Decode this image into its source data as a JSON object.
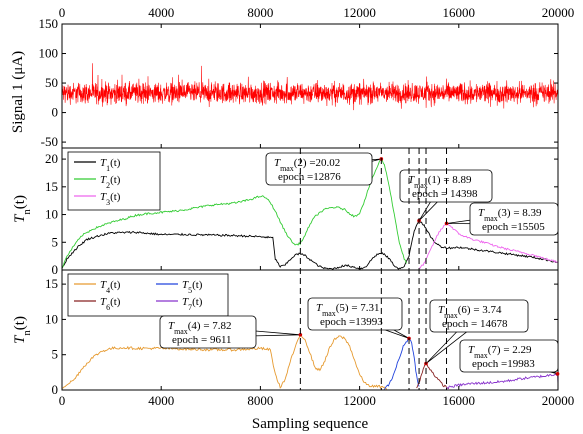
{
  "chart_data": {
    "type": "line",
    "x_axis": {
      "label": "Sampling sequence",
      "range": [
        0,
        20000
      ],
      "ticks": [
        "0",
        "4000",
        "8000",
        "12000",
        "16000",
        "20000"
      ]
    },
    "epoch_markers": [
      9611,
      12876,
      13993,
      14398,
      14678,
      15505
    ],
    "panels": [
      {
        "ylabel_prefix": "Signal 1 (",
        "ylabel_unit": "μA",
        "ylabel_suffix": ")",
        "ylim": [
          -60,
          150
        ],
        "yticks": [
          -50,
          0,
          50,
          100,
          150
        ],
        "series": [
          {
            "name": "",
            "color": "#ff0000",
            "noise": true,
            "mean": 33,
            "amplitude_typical": 26,
            "amplitude_max": 55
          }
        ]
      },
      {
        "ylabel_main": "T",
        "ylabel_sub": "n",
        "ylabel_rest": "(t)",
        "ylim": [
          0,
          22
        ],
        "yticks": [
          0,
          5,
          10,
          15,
          20
        ],
        "legend": [
          {
            "main": "T",
            "sub": "1",
            "rest": "(t)",
            "color": "#000000"
          },
          {
            "main": "T",
            "sub": "2",
            "rest": "(t)",
            "color": "#33cc33"
          },
          {
            "main": "T",
            "sub": "3",
            "rest": "(t)",
            "color": "#ee66ee"
          }
        ],
        "series": [
          {
            "name": "T1(t)",
            "color": "#000000",
            "x": [
              0,
              200,
              600,
              1000,
              1500,
              2000,
              3000,
              4000,
              5000,
              6000,
              7000,
              8000,
              8500,
              8600,
              8800,
              9000,
              9200,
              9400,
              9600,
              9800,
              10000,
              10200,
              10400,
              10600,
              10800,
              11000,
              11300,
              11500,
              11700,
              11900,
              12000,
              12100,
              12300,
              12500,
              12700,
              12876,
              13000,
              13200,
              13400,
              13600,
              13800,
              13993,
              14100,
              14200,
              14300,
              14398,
              14500,
              14600,
              14700,
              14900,
              15100,
              15300,
              15505,
              15700,
              16000,
              17000,
              18000,
              19000,
              20000
            ],
            "values": [
              0.3,
              2.0,
              4.0,
              5.5,
              6.2,
              6.7,
              6.8,
              6.4,
              6.4,
              6.3,
              6.2,
              6.0,
              5.8,
              2.0,
              0.6,
              0.9,
              1.9,
              2.7,
              2.95,
              2.6,
              1.9,
              1.2,
              0.6,
              0.3,
              0.2,
              0.3,
              0.7,
              0.8,
              0.6,
              0.4,
              0.3,
              0.3,
              0.8,
              2.0,
              2.8,
              3.0,
              2.8,
              2.0,
              0.8,
              0.2,
              0.6,
              2.5,
              5.0,
              7.0,
              8.2,
              8.89,
              8.6,
              8.0,
              7.2,
              5.8,
              4.7,
              4.2,
              4.0,
              4.0,
              4.1,
              3.5,
              2.9,
              2.3,
              1.4
            ]
          },
          {
            "name": "T2(t)",
            "color": "#33cc33",
            "x": [
              0,
              200,
              500,
              800,
              1200,
              1600,
              2000,
              2500,
              3000,
              3500,
              4000,
              4500,
              5000,
              5500,
              6000,
              6500,
              7000,
              7500,
              8000,
              8200,
              8400,
              8600,
              8800,
              9000,
              9200,
              9400,
              9600,
              9800,
              10000,
              10200,
              10400,
              10600,
              10800,
              11000,
              11200,
              11400,
              11600,
              11800,
              12000,
              12200,
              12400,
              12600,
              12800,
              12876,
              13000,
              13200,
              13400,
              13600,
              13800,
              13900
            ],
            "values": [
              0.3,
              2.5,
              4.5,
              6.2,
              7.3,
              8.0,
              8.6,
              9.2,
              9.9,
              10.2,
              10.4,
              10.6,
              10.9,
              11.3,
              11.7,
              11.9,
              12.1,
              12.6,
              13.3,
              13.1,
              12.2,
              10.6,
              8.7,
              6.9,
              5.5,
              4.5,
              4.8,
              6.2,
              8.3,
              9.6,
              10.4,
              10.9,
              11.2,
              11.3,
              11.2,
              10.9,
              10.2,
              9.6,
              10.3,
              12.5,
              15.2,
              17.5,
              19.5,
              20.02,
              19.0,
              15.0,
              10.0,
              5.0,
              2.0,
              1.2
            ]
          },
          {
            "name": "T3(t)",
            "color": "#ee66ee",
            "x": [
              14400,
              14600,
              14800,
              15000,
              15200,
              15400,
              15505,
              15700,
              16000,
              16500,
              17000,
              17500,
              18000,
              18500,
              19000,
              19500,
              20000
            ],
            "values": [
              0.2,
              1.2,
              3.0,
              5.0,
              6.8,
              7.9,
              8.39,
              7.8,
              6.5,
              5.6,
              5.0,
              4.3,
              3.7,
              3.2,
              2.7,
              2.0,
              1.4
            ]
          }
        ],
        "annotations": [
          {
            "line1_main": "T",
            "line1_sub": "max",
            "line1_rest": "(2) =20.02",
            "line2": "epoch =12876",
            "epoch": 12876,
            "value": 20.02
          },
          {
            "line1_main": "T",
            "line1_sub": "max",
            "line1_rest": "(1) = 8.89",
            "line2": "epoch = 14398",
            "epoch": 14398,
            "value": 8.89
          },
          {
            "line1_main": "T",
            "line1_sub": "max",
            "line1_rest": "(3) = 8.39",
            "line2": "epoch =15505",
            "epoch": 15505,
            "value": 8.39
          }
        ]
      },
      {
        "ylabel_main": "T",
        "ylabel_sub": "n",
        "ylabel_rest": "(t)",
        "ylim": [
          0,
          17
        ],
        "yticks": [
          0,
          5,
          10,
          15
        ],
        "legend": [
          {
            "main": "T",
            "sub": "4",
            "rest": "(t)",
            "color": "#e69a30"
          },
          {
            "main": "T",
            "sub": "5",
            "rest": "(t)",
            "color": "#2244dd"
          },
          {
            "main": "T",
            "sub": "6",
            "rest": "(t)",
            "color": "#882222"
          },
          {
            "main": "T",
            "sub": "7",
            "rest": "(t)",
            "color": "#8833cc"
          }
        ],
        "series": [
          {
            "name": "T4(t)",
            "color": "#e69a30",
            "x": [
              0,
              200,
              500,
              800,
              1200,
              1600,
              2000,
              2500,
              3000,
              4000,
              5000,
              6000,
              7000,
              8000,
              8400,
              8600,
              8800,
              9000,
              9200,
              9400,
              9611,
              9800,
              10000,
              10200,
              10400,
              10600,
              10800,
              11000,
              11200,
              11400,
              11600,
              11800,
              12000,
              12200,
              12400,
              12600,
              12800,
              13000,
              13100
            ],
            "values": [
              0.3,
              0.8,
              1.5,
              3.0,
              4.5,
              5.5,
              5.9,
              6.0,
              5.9,
              5.9,
              5.8,
              5.7,
              5.7,
              5.9,
              5.7,
              2.2,
              0.4,
              1.5,
              4.0,
              6.0,
              7.82,
              7.2,
              5.2,
              3.2,
              2.8,
              4.2,
              6.0,
              7.2,
              7.6,
              7.3,
              6.2,
              4.2,
              2.2,
              1.0,
              0.6,
              0.5,
              0.5,
              0.3,
              0.2
            ]
          },
          {
            "name": "T5(t)",
            "color": "#2244dd",
            "x": [
              13000,
              13200,
              13400,
              13600,
              13800,
              13993,
              14100,
              14200,
              14300,
              14400
            ],
            "values": [
              0.2,
              0.8,
              2.5,
              4.5,
              6.5,
              7.31,
              6.8,
              4.5,
              2.0,
              0.5
            ]
          },
          {
            "name": "T6(t)",
            "color": "#882222",
            "x": [
              14300,
              14400,
              14500,
              14600,
              14678,
              14800,
              15000,
              15200,
              15400,
              15600
            ],
            "values": [
              0.2,
              1.0,
              2.2,
              3.3,
              3.74,
              3.2,
              2.2,
              1.3,
              0.6,
              0.2
            ]
          },
          {
            "name": "T7(t)",
            "color": "#8833cc",
            "x": [
              15500,
              16000,
              16500,
              17000,
              17500,
              18000,
              18500,
              19000,
              19500,
              19983,
              20000
            ],
            "values": [
              0.3,
              0.7,
              0.9,
              1.0,
              1.1,
              1.3,
              1.6,
              1.8,
              2.0,
              2.29,
              0.8
            ]
          }
        ],
        "annotations": [
          {
            "line1_main": "T",
            "line1_sub": "max",
            "line1_rest": "(4) = 7.82",
            "line2": "epoch = 9611",
            "epoch": 9611,
            "value": 7.82
          },
          {
            "line1_main": "T",
            "line1_sub": "max",
            "line1_rest": "(5) = 7.31",
            "line2": "epoch =13993",
            "epoch": 13993,
            "value": 7.31
          },
          {
            "line1_main": "T",
            "line1_sub": "max",
            "line1_rest": "(6) = 3.74",
            "line2": "epoch = 14678",
            "epoch": 14678,
            "value": 3.74
          },
          {
            "line1_main": "T",
            "line1_sub": "max",
            "line1_rest": "(7) = 2.29",
            "line2": "epoch =19983",
            "epoch": 19983,
            "value": 2.29
          }
        ]
      }
    ]
  }
}
